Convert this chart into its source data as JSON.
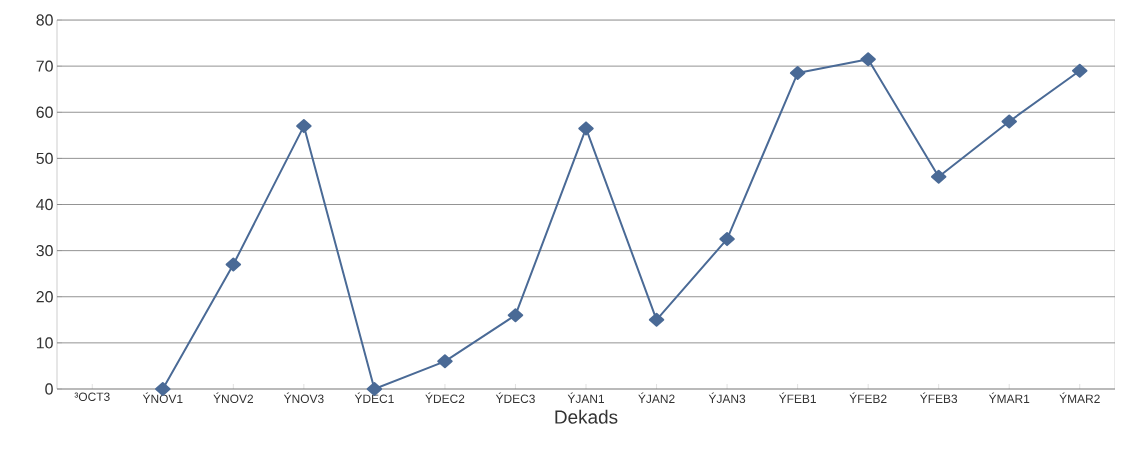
{
  "chart_data": {
    "type": "line",
    "xlabel": "Dekads",
    "categories": [
      "³OCT3",
      "ÝNOV1",
      "ÝNOV2",
      "ÝNOV3",
      "ÝDEC1",
      "ÝDEC2",
      "ÝDEC3",
      "ÝJAN1",
      "ÝJAN2",
      "ÝJAN3",
      "ÝFEB1",
      "ÝFEB2",
      "ÝFEB3",
      "ÝMAR1",
      "ÝMAR2"
    ],
    "values": [
      null,
      0,
      27,
      57,
      0,
      6,
      16,
      56.5,
      15,
      32.5,
      68.5,
      71.5,
      46,
      58,
      69
    ],
    "color": "#4a6a96",
    "marker": "diamond",
    "line_style": "solid",
    "ylim": [
      0,
      80
    ],
    "yticks": [
      0,
      10,
      20,
      30,
      40,
      50,
      60,
      70,
      80
    ],
    "grid": "y"
  }
}
